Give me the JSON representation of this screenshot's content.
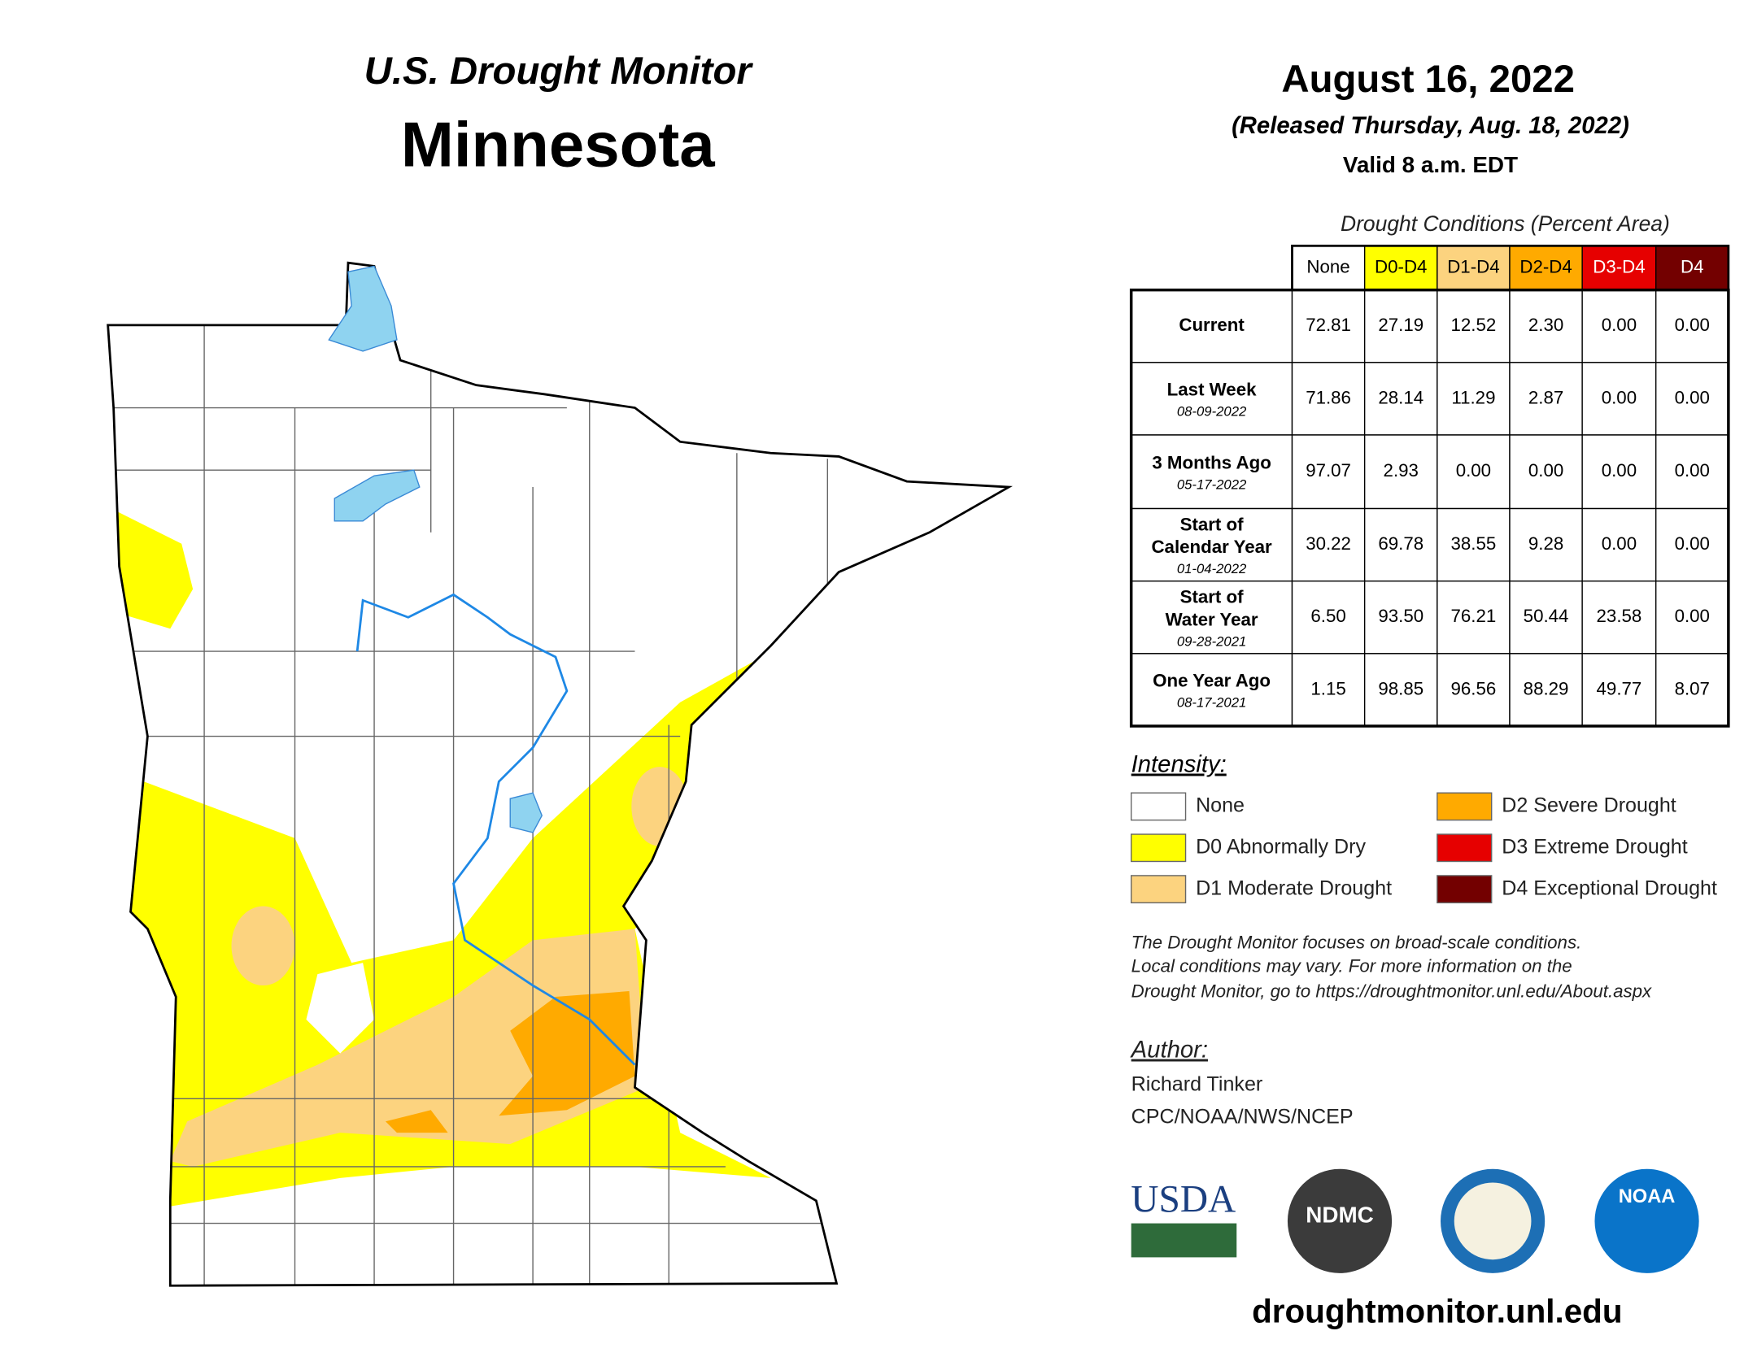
{
  "header": {
    "program": "U.S. Drought Monitor",
    "state": "Minnesota",
    "date": "August 16, 2022",
    "released": "(Released Thursday, Aug. 18, 2022)",
    "valid": "Valid 8 a.m. EDT"
  },
  "table": {
    "title": "Drought Conditions (Percent Area)",
    "columns": [
      {
        "label": "None",
        "color": "#ffffff",
        "text": "#000000"
      },
      {
        "label": "D0-D4",
        "color": "#ffff00",
        "text": "#000000"
      },
      {
        "label": "D1-D4",
        "color": "#fcd37f",
        "text": "#000000"
      },
      {
        "label": "D2-D4",
        "color": "#ffaa00",
        "text": "#000000"
      },
      {
        "label": "D3-D4",
        "color": "#e60000",
        "text": "#ffffff"
      },
      {
        "label": "D4",
        "color": "#730000",
        "text": "#ffffff"
      }
    ],
    "rows": [
      {
        "label": [
          "Current"
        ],
        "values": [
          "72.81",
          "27.19",
          "12.52",
          "2.30",
          "0.00",
          "0.00"
        ]
      },
      {
        "label": [
          "Last Week"
        ],
        "date": "08-09-2022",
        "values": [
          "71.86",
          "28.14",
          "11.29",
          "2.87",
          "0.00",
          "0.00"
        ]
      },
      {
        "label": [
          "3 Months Ago"
        ],
        "date": "05-17-2022",
        "values": [
          "97.07",
          "2.93",
          "0.00",
          "0.00",
          "0.00",
          "0.00"
        ]
      },
      {
        "label": [
          "Start of",
          "Calendar Year"
        ],
        "date": "01-04-2022",
        "values": [
          "30.22",
          "69.78",
          "38.55",
          "9.28",
          "0.00",
          "0.00"
        ]
      },
      {
        "label": [
          "Start of",
          "Water Year"
        ],
        "date": "09-28-2021",
        "values": [
          "6.50",
          "93.50",
          "76.21",
          "50.44",
          "23.58",
          "0.00"
        ]
      },
      {
        "label": [
          "One Year Ago"
        ],
        "date": "08-17-2021",
        "values": [
          "1.15",
          "98.85",
          "96.56",
          "88.29",
          "49.77",
          "8.07"
        ]
      }
    ]
  },
  "legend": {
    "title": "Intensity:",
    "items": [
      {
        "label": "None",
        "color": "#ffffff"
      },
      {
        "label": "D0 Abnormally Dry",
        "color": "#ffff00"
      },
      {
        "label": "D1 Moderate Drought",
        "color": "#fcd37f"
      },
      {
        "label": "D2 Severe Drought",
        "color": "#ffaa00"
      },
      {
        "label": "D3 Extreme Drought",
        "color": "#e60000"
      },
      {
        "label": "D4 Exceptional Drought",
        "color": "#730000"
      }
    ]
  },
  "note": [
    "The Drought Monitor focuses on broad-scale conditions.",
    "Local conditions may vary. For more information on the",
    "Drought Monitor, go to https://droughtmonitor.unl.edu/About.aspx"
  ],
  "author": {
    "title": "Author:",
    "name": "Richard Tinker",
    "org": "CPC/NOAA/NWS/NCEP"
  },
  "logos": [
    "USDA",
    "NDMC",
    "NOAA"
  ],
  "url": "droughtmonitor.unl.edu"
}
